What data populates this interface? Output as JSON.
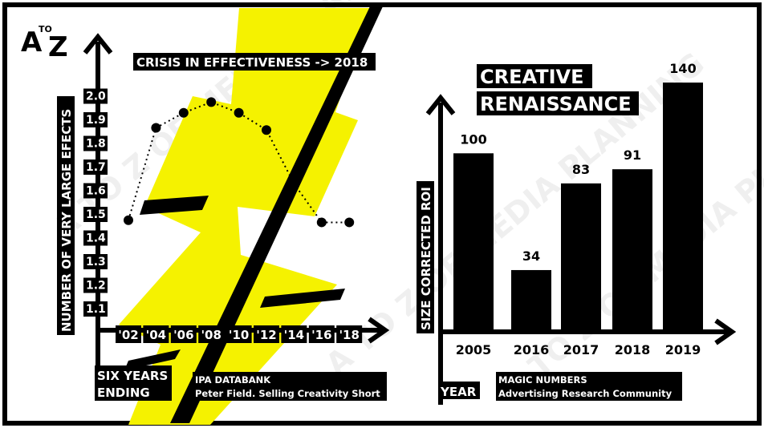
{
  "brand": {
    "logo_a": "A",
    "logo_to": "TO",
    "logo_z": "Z"
  },
  "watermark": "A TO Z OF MEDIA PLANNING",
  "colors": {
    "accent_yellow": "#f5f200",
    "ink": "#000000",
    "paper": "#ffffff"
  },
  "left_panel": {
    "title": "CRISIS IN EFFECTIVENESS -> 2018",
    "x_caption_line1": "SIX YEARS",
    "x_caption_line2": "ENDING",
    "source_line1": "IPA DATABANK",
    "source_line2": "Peter Field. Selling Creativity Short"
  },
  "right_panel": {
    "title_line1": "CREATIVE",
    "title_line2": "RENAISSANCE",
    "x_caption": "YEAR",
    "source_line1": "MAGIC NUMBERS",
    "source_line2": "Advertising Research Community"
  },
  "chart_data": [
    {
      "type": "line",
      "title": "CRISIS IN EFFECTIVENESS -> 2018",
      "ylabel": "NUMBER OF VERY LARGE EFECTS",
      "xlabel": "SIX YEARS ENDING",
      "x": [
        "'02",
        "'04",
        "'06",
        "'08",
        "'10",
        "'12",
        "'14",
        "'16",
        "'18"
      ],
      "y_ticks": [
        "1.1",
        "1.2",
        "1.3",
        "1.4",
        "1.5",
        "1.6",
        "1.7",
        "1.8",
        "1.9",
        "2.0"
      ],
      "ylim": [
        1.0,
        2.0
      ],
      "series": [
        {
          "values": [
            1.43,
            1.86,
            1.93,
            1.98,
            1.93,
            1.85,
            1.6,
            1.42,
            1.42
          ]
        }
      ],
      "grid": false,
      "line_style": "dotted"
    },
    {
      "type": "bar",
      "title": "CREATIVE RENAISSANCE",
      "ylabel": "SIZE CORRECTED ROI",
      "xlabel": "YEAR",
      "categories": [
        "2005",
        "2016",
        "2017",
        "2018",
        "2019"
      ],
      "values": [
        100,
        34,
        83,
        91,
        140
      ],
      "data_labels": [
        "100",
        "34",
        "83",
        "91",
        "140"
      ],
      "ylim": [
        0,
        150
      ],
      "grid": false
    }
  ]
}
